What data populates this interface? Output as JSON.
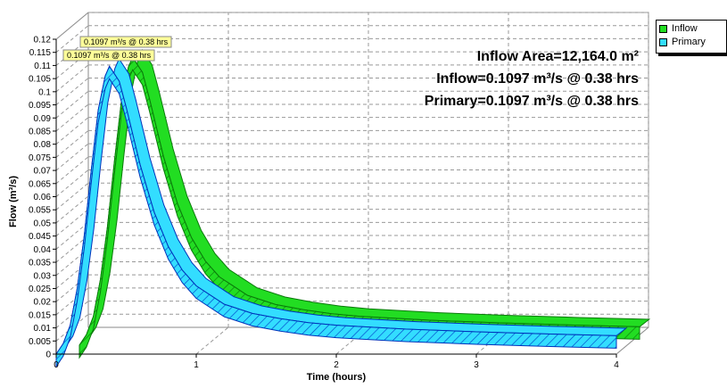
{
  "chart_data": {
    "type": "area",
    "xlabel": "Time  (hours)",
    "ylabel": "Flow  (m³/s)",
    "xlim": [
      0,
      4
    ],
    "ylim": [
      0,
      0.12
    ],
    "x_ticks": [
      "0",
      "1",
      "2",
      "3",
      "4"
    ],
    "y_ticks": [
      "0",
      "0.005",
      "0.01",
      "0.015",
      "0.02",
      "0.025",
      "0.03",
      "0.035",
      "0.04",
      "0.045",
      "0.05",
      "0.055",
      "0.06",
      "0.065",
      "0.07",
      "0.075",
      "0.08",
      "0.085",
      "0.09",
      "0.095",
      "0.1",
      "0.105",
      "0.11",
      "0.115",
      "0.12"
    ],
    "grid": true,
    "legend_position": "top-right",
    "x": [
      0,
      0.05,
      0.1,
      0.15,
      0.2,
      0.25,
      0.3,
      0.35,
      0.38,
      0.45,
      0.5,
      0.6,
      0.7,
      0.8,
      0.9,
      1.0,
      1.2,
      1.4,
      1.6,
      1.8,
      2.0,
      2.5,
      3.0,
      3.5,
      4.0
    ],
    "series": [
      {
        "name": "Inflow",
        "color": "#22dd22",
        "values": [
          0,
          0.004,
          0.011,
          0.025,
          0.045,
          0.07,
          0.093,
          0.106,
          0.1097,
          0.104,
          0.094,
          0.072,
          0.054,
          0.041,
          0.032,
          0.026,
          0.019,
          0.0155,
          0.0135,
          0.012,
          0.011,
          0.0095,
          0.0085,
          0.0077,
          0.007
        ]
      },
      {
        "name": "Primary",
        "color": "#33ddff",
        "values": [
          0,
          0.004,
          0.011,
          0.025,
          0.045,
          0.07,
          0.093,
          0.106,
          0.1097,
          0.104,
          0.094,
          0.072,
          0.054,
          0.041,
          0.032,
          0.026,
          0.019,
          0.0155,
          0.0135,
          0.012,
          0.011,
          0.0095,
          0.0085,
          0.0077,
          0.007
        ]
      }
    ],
    "peak_labels": [
      {
        "series": "Inflow",
        "text": "0.1097 m³/s @ 0.38 hrs"
      },
      {
        "series": "Primary",
        "text": "0.1097 m³/s @ 0.38 hrs"
      }
    ],
    "annotations": [
      "Inflow Area=12,164.0 m²",
      "Inflow=0.1097 m³/s @ 0.38 hrs",
      "Primary=0.1097 m³/s @ 0.38 hrs"
    ]
  }
}
